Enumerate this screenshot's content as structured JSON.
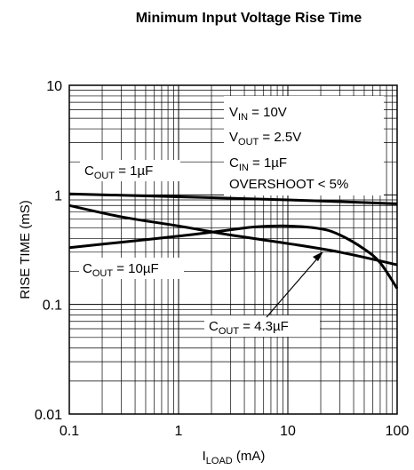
{
  "chart_data": {
    "type": "line",
    "title": "Minimum Input Voltage Rise Time",
    "xlabel": {
      "main": "I",
      "sub": "LOAD",
      "unit": " (mA)"
    },
    "ylabel": "RISE TIME (mS)",
    "x_scale": "log",
    "y_scale": "log",
    "xlim": [
      0.1,
      100
    ],
    "ylim": [
      0.01,
      10
    ],
    "x_ticks": [
      "0.1",
      "1",
      "10",
      "100"
    ],
    "y_ticks": [
      "10",
      "1",
      "0.1",
      "0.01"
    ],
    "grid": true,
    "conditions": [
      {
        "main": "V",
        "sub": "IN",
        "rest": " = 10V"
      },
      {
        "main": "V",
        "sub": "OUT",
        "rest": " = 2.5V"
      },
      {
        "main": "C",
        "sub": "IN",
        "rest": " = 1µF"
      },
      {
        "main": "OVERSHOOT < 5%",
        "sub": "",
        "rest": ""
      }
    ],
    "series": [
      {
        "name": {
          "main": "C",
          "sub": "OUT",
          "rest": " = 1µF"
        },
        "x": [
          0.1,
          1,
          10,
          100
        ],
        "y": [
          1.02,
          0.96,
          0.9,
          0.83
        ]
      },
      {
        "name": {
          "main": "C",
          "sub": "OUT",
          "rest": " = 10µF"
        },
        "x": [
          0.1,
          0.3,
          1,
          3,
          10,
          30,
          100
        ],
        "y": [
          0.8,
          0.63,
          0.52,
          0.43,
          0.36,
          0.3,
          0.23
        ]
      },
      {
        "name": {
          "main": "C",
          "sub": "OUT",
          "rest": " = 4.3µF"
        },
        "x": [
          0.1,
          0.3,
          1,
          3,
          5,
          10,
          20,
          30,
          50,
          70,
          100
        ],
        "y": [
          0.33,
          0.37,
          0.42,
          0.48,
          0.51,
          0.52,
          0.49,
          0.43,
          0.32,
          0.24,
          0.14
        ]
      }
    ]
  }
}
